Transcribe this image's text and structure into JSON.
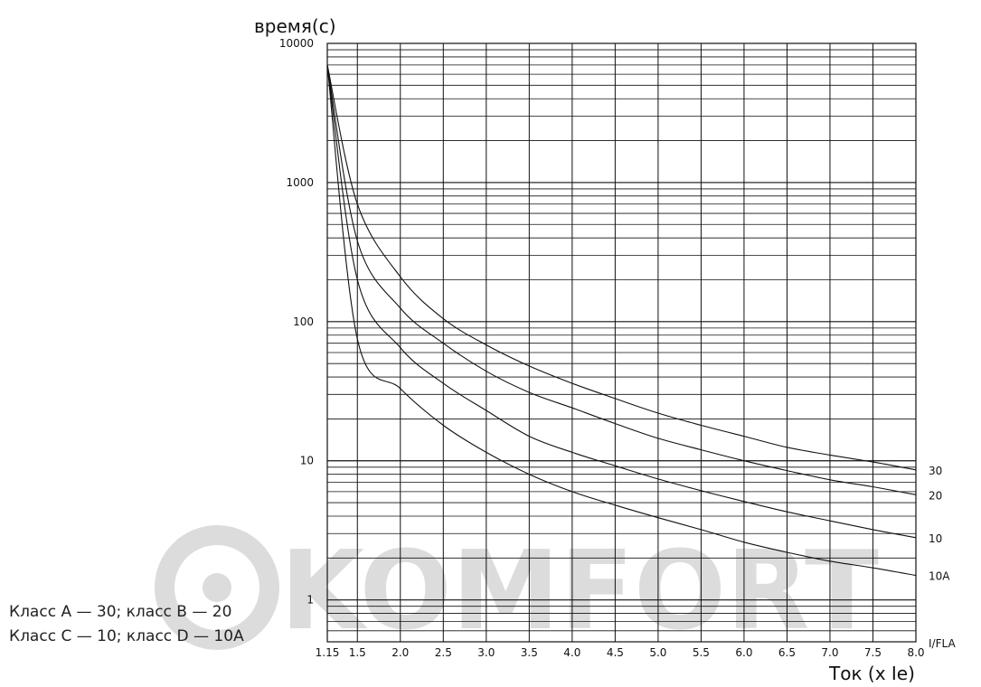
{
  "chart_data": {
    "type": "line",
    "ylabel": "время(с)",
    "xlabel": "Ток (x Ie)",
    "xunit_label": "I/FLA",
    "x_ticks": [
      "1.15",
      "1.5",
      "2.0",
      "2.5",
      "3.0",
      "3.5",
      "4.0",
      "4.5",
      "5.0",
      "5.5",
      "6.0",
      "6.5",
      "7.0",
      "7.5",
      "8.0"
    ],
    "x_tick_values": [
      1.15,
      1.5,
      2.0,
      2.5,
      3.0,
      3.5,
      4.0,
      4.5,
      5.0,
      5.5,
      6.0,
      6.5,
      7.0,
      7.5,
      8.0
    ],
    "y_ticks": [
      "1",
      "10",
      "100",
      "1000",
      "10000"
    ],
    "y_tick_values": [
      1,
      10,
      100,
      1000,
      10000
    ],
    "xlim": [
      1.15,
      8.0
    ],
    "ylim": [
      0.5,
      10000
    ],
    "yscale": "log",
    "grid": true,
    "series": [
      {
        "name": "30",
        "x": [
          1.15,
          1.5,
          2.0,
          2.5,
          3.0,
          3.5,
          4.0,
          4.5,
          5.0,
          5.5,
          6.0,
          6.5,
          7.0,
          7.5,
          8.0
        ],
        "y": [
          7000,
          700,
          210,
          105,
          68,
          48,
          36,
          28,
          22,
          18,
          15,
          12.5,
          11,
          9.8,
          8.6
        ]
      },
      {
        "name": "20",
        "x": [
          1.15,
          1.5,
          2.0,
          2.5,
          3.0,
          3.5,
          4.0,
          4.5,
          5.0,
          5.5,
          6.0,
          6.5,
          7.0,
          7.5,
          8.0
        ],
        "y": [
          7000,
          380,
          125,
          70,
          44,
          31,
          24,
          18.5,
          14.5,
          12,
          10,
          8.5,
          7.3,
          6.5,
          5.7
        ]
      },
      {
        "name": "10",
        "x": [
          1.15,
          1.5,
          2.0,
          2.5,
          3.0,
          3.5,
          4.0,
          4.5,
          5.0,
          5.5,
          6.0,
          6.5,
          7.0,
          7.5,
          8.0
        ],
        "y": [
          7000,
          200,
          65,
          36,
          23,
          15,
          11.5,
          9.2,
          7.4,
          6.1,
          5.1,
          4.3,
          3.7,
          3.2,
          2.8
        ]
      },
      {
        "name": "10A",
        "x": [
          1.15,
          1.5,
          2.0,
          2.5,
          3.0,
          3.5,
          4.0,
          4.5,
          5.0,
          5.5,
          6.0,
          6.5,
          7.0,
          7.5,
          8.0
        ],
        "y": [
          7000,
          75,
          33,
          18,
          11.5,
          8,
          6,
          4.8,
          3.9,
          3.2,
          2.6,
          2.2,
          1.9,
          1.7,
          1.5
        ]
      }
    ]
  },
  "legend": {
    "line1": "Класс А — 30;  класс В — 20",
    "line2": "Класс С — 10;  класс D — 10A"
  },
  "watermark": {
    "text": "KOMFORT"
  }
}
